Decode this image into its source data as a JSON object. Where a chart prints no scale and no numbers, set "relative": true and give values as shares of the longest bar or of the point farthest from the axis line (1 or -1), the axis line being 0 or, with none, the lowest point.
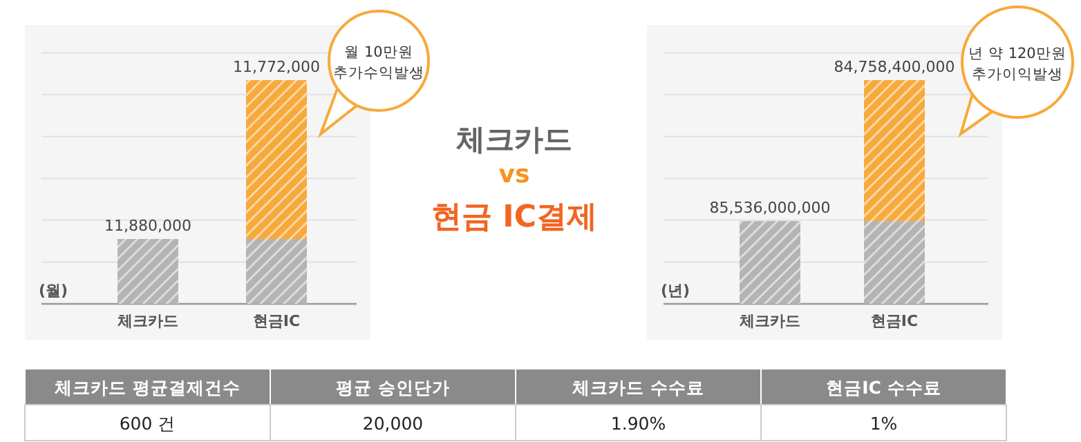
{
  "chart_data": [
    {
      "type": "bar",
      "stacked": true,
      "relative": true,
      "categories": [
        "체크카드",
        "현금IC"
      ],
      "series": [
        {
          "color": "#b4b4b4",
          "values": [
            0.29,
            0.29
          ]
        },
        {
          "color": "#f7a93b",
          "values": [
            null,
            0.71
          ]
        }
      ],
      "grid": true,
      "annotations": [
        "(월)",
        "월 10만원\n추가수익발생",
        {
          "text": "11,880,000",
          "x": "체크카드",
          "y": 0.29
        },
        {
          "text": "11,772,000",
          "x": "현금IC",
          "y": 1
        }
      ]
    },
    {
      "type": "bar",
      "stacked": true,
      "relative": true,
      "categories": [
        "체크카드",
        "현금IC"
      ],
      "series": [
        {
          "color": "#b4b4b4",
          "values": [
            0.37,
            0.37
          ]
        },
        {
          "color": "#f7a93b",
          "values": [
            null,
            0.63
          ]
        }
      ],
      "grid": true,
      "annotations": [
        "(년)",
        "년 약 120만원\n추가이익발생",
        {
          "text": "85,536,000,000",
          "x": "체크카드",
          "y": 0.37
        },
        {
          "text": "84,758,400,000",
          "x": "현금IC",
          "y": 1
        }
      ]
    },
    {
      "type": "other",
      "title": "체크카드",
      "subtitle": "vs",
      "annotations": [
        "현금 IC결제"
      ]
    },
    {
      "type": "other",
      "annotations": [
        "체크카드 평균결제건수",
        "평균 승인단가",
        "체크카드 수수료",
        "현금IC 수수료",
        "600 건",
        "20,000",
        "1.90%",
        "1%"
      ]
    }
  ]
}
